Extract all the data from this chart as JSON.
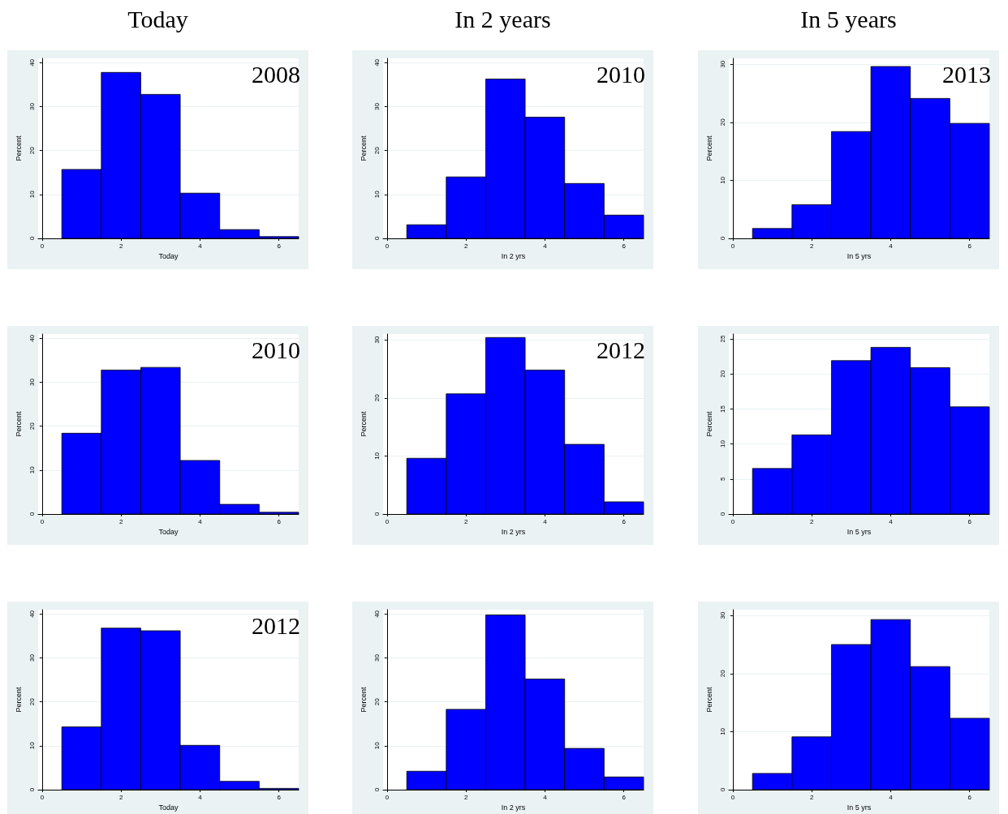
{
  "chart_data": [
    {
      "type": "histogram",
      "title": "Today",
      "xlabel": "Today",
      "ylabel": "Percent",
      "bins": [
        0.5,
        1.5,
        2.5,
        3.5,
        4.5,
        5.5,
        6.5
      ],
      "values": [
        15.7,
        37.8,
        32.8,
        10.3,
        2.0,
        0.4
      ],
      "color": "#0000ff",
      "xlim": [
        -0.1,
        6.5
      ],
      "ylim": [
        0,
        41
      ],
      "xticks": [
        0,
        2,
        4,
        6
      ],
      "yticks": [
        0,
        10,
        20,
        30,
        40
      ],
      "grid": "y",
      "annotations": [
        "2008"
      ]
    },
    {
      "type": "histogram",
      "title": "In 2 years",
      "xlabel": "In 2 yrs",
      "ylabel": "Percent",
      "bins": [
        0.5,
        1.5,
        2.5,
        3.5,
        4.5,
        5.5,
        6.5
      ],
      "values": [
        3.1,
        14.0,
        36.3,
        27.6,
        12.5,
        5.3
      ],
      "color": "#0000ff",
      "xlim": [
        -0.1,
        6.5
      ],
      "ylim": [
        0,
        41
      ],
      "xticks": [
        0,
        2,
        4,
        6
      ],
      "yticks": [
        0,
        10,
        20,
        30,
        40
      ],
      "grid": "y",
      "annotations": [
        "2010"
      ]
    },
    {
      "type": "histogram",
      "title": "In 5 years",
      "xlabel": "In 5 yrs",
      "ylabel": "Percent",
      "bins": [
        0.5,
        1.5,
        2.5,
        3.5,
        4.5,
        5.5,
        6.5
      ],
      "values": [
        1.7,
        5.8,
        18.4,
        29.6,
        24.1,
        19.8
      ],
      "color": "#0000ff",
      "xlim": [
        -0.1,
        6.5
      ],
      "ylim": [
        0,
        31
      ],
      "xticks": [
        0,
        2,
        4,
        6
      ],
      "yticks": [
        0,
        10,
        20,
        30
      ],
      "grid": "y",
      "annotations": [
        "2013"
      ]
    },
    {
      "type": "histogram",
      "xlabel": "Today",
      "ylabel": "Percent",
      "bins": [
        0.5,
        1.5,
        2.5,
        3.5,
        4.5,
        5.5,
        6.5
      ],
      "values": [
        18.4,
        32.8,
        33.4,
        12.2,
        2.2,
        0.4
      ],
      "color": "#0000ff",
      "xlim": [
        -0.1,
        6.5
      ],
      "ylim": [
        0,
        41
      ],
      "xticks": [
        0,
        2,
        4,
        6
      ],
      "yticks": [
        0,
        10,
        20,
        30,
        40
      ],
      "grid": "y",
      "annotations": [
        "2010"
      ]
    },
    {
      "type": "histogram",
      "xlabel": "In 2 yrs",
      "ylabel": "Percent",
      "bins": [
        0.5,
        1.5,
        2.5,
        3.5,
        4.5,
        5.5,
        6.5
      ],
      "values": [
        9.6,
        20.7,
        30.4,
        24.8,
        12.0,
        2.1
      ],
      "color": "#0000ff",
      "xlim": [
        -0.1,
        6.5
      ],
      "ylim": [
        0,
        31
      ],
      "xticks": [
        0,
        2,
        4,
        6
      ],
      "yticks": [
        0,
        10,
        20,
        30
      ],
      "grid": "y",
      "annotations": [
        "2012"
      ]
    },
    {
      "type": "histogram",
      "xlabel": "In 5 yrs",
      "ylabel": "Percent",
      "bins": [
        0.5,
        1.5,
        2.5,
        3.5,
        4.5,
        5.5,
        6.5
      ],
      "values": [
        6.5,
        11.3,
        21.9,
        23.8,
        20.9,
        15.3
      ],
      "color": "#0000ff",
      "xlim": [
        -0.1,
        6.5
      ],
      "ylim": [
        0,
        25.7
      ],
      "xticks": [
        0,
        2,
        4,
        6
      ],
      "yticks": [
        0,
        5,
        10,
        15,
        20,
        25
      ],
      "grid": "y"
    },
    {
      "type": "histogram",
      "xlabel": "Today",
      "ylabel": "Percent",
      "bins": [
        0.5,
        1.5,
        2.5,
        3.5,
        4.5,
        5.5,
        6.5
      ],
      "values": [
        14.3,
        36.8,
        36.2,
        10.1,
        1.9,
        0.3
      ],
      "color": "#0000ff",
      "xlim": [
        -0.1,
        6.5
      ],
      "ylim": [
        0,
        41
      ],
      "xticks": [
        0,
        2,
        4,
        6
      ],
      "yticks": [
        0,
        10,
        20,
        30,
        40
      ],
      "grid": "y",
      "annotations": [
        "2012"
      ]
    },
    {
      "type": "histogram",
      "xlabel": "In 2 yrs",
      "ylabel": "Percent",
      "bins": [
        0.5,
        1.5,
        2.5,
        3.5,
        4.5,
        5.5,
        6.5
      ],
      "values": [
        4.2,
        18.3,
        39.8,
        25.2,
        9.4,
        2.9
      ],
      "color": "#0000ff",
      "xlim": [
        -0.1,
        6.5
      ],
      "ylim": [
        0,
        41
      ],
      "xticks": [
        0,
        2,
        4,
        6
      ],
      "yticks": [
        0,
        10,
        20,
        30,
        40
      ],
      "grid": "y"
    },
    {
      "type": "histogram",
      "xlabel": "In 5 yrs",
      "ylabel": "Percent",
      "bins": [
        0.5,
        1.5,
        2.5,
        3.5,
        4.5,
        5.5,
        6.5
      ],
      "values": [
        2.8,
        9.1,
        25.0,
        29.3,
        21.2,
        12.3
      ],
      "color": "#0000ff",
      "xlim": [
        -0.1,
        6.5
      ],
      "ylim": [
        0,
        31
      ],
      "xticks": [
        0,
        2,
        4,
        6
      ],
      "yticks": [
        0,
        10,
        20,
        30
      ],
      "grid": "y"
    }
  ]
}
